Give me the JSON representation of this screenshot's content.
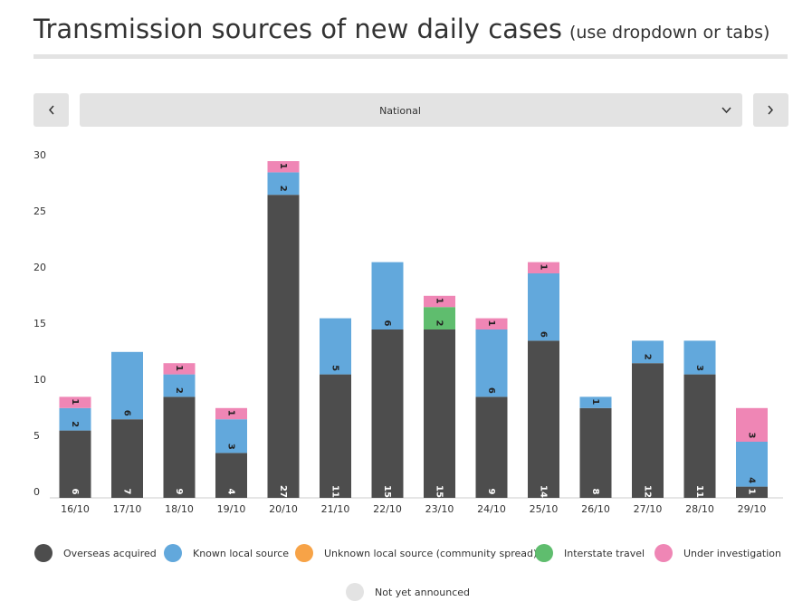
{
  "controls": {
    "region": "National"
  },
  "chart_data": {
    "type": "stacked-bar",
    "title": "Transmission sources of new daily cases",
    "subtitle": "(use dropdown or tabs)",
    "categories": [
      "16/10",
      "17/10",
      "18/10",
      "19/10",
      "20/10",
      "21/10",
      "22/10",
      "23/10",
      "24/10",
      "25/10",
      "26/10",
      "27/10",
      "28/10",
      "29/10"
    ],
    "series": [
      {
        "name": "Overseas acquired",
        "color": "#4d4d4d",
        "values": [
          6,
          7,
          9,
          4,
          27,
          11,
          15,
          15,
          9,
          14,
          8,
          12,
          11,
          1
        ]
      },
      {
        "name": "Known local source",
        "color": "#62a8dc",
        "values": [
          2,
          6,
          2,
          3,
          2,
          5,
          6,
          0,
          6,
          6,
          1,
          2,
          3,
          4
        ]
      },
      {
        "name": "Unknown local source (community spread)",
        "color": "#f7a347",
        "values": [
          0,
          0,
          0,
          0,
          0,
          0,
          0,
          0,
          0,
          0,
          0,
          0,
          0,
          0
        ]
      },
      {
        "name": "Interstate travel",
        "color": "#5fbd6e",
        "values": [
          0,
          0,
          0,
          0,
          0,
          0,
          0,
          2,
          0,
          0,
          0,
          0,
          0,
          0
        ]
      },
      {
        "name": "Under investigation",
        "color": "#ef86b5",
        "values": [
          1,
          0,
          1,
          1,
          1,
          0,
          0,
          1,
          1,
          1,
          0,
          0,
          0,
          3
        ]
      },
      {
        "name": "Not yet announced",
        "color": "#e3e3e3",
        "values": [
          0,
          0,
          0,
          0,
          0,
          0,
          0,
          0,
          0,
          0,
          0,
          0,
          0,
          0
        ]
      }
    ],
    "ylim": [
      0,
      30
    ],
    "yticks": [
      0,
      5,
      10,
      15,
      20,
      25,
      30
    ],
    "grid": false
  }
}
